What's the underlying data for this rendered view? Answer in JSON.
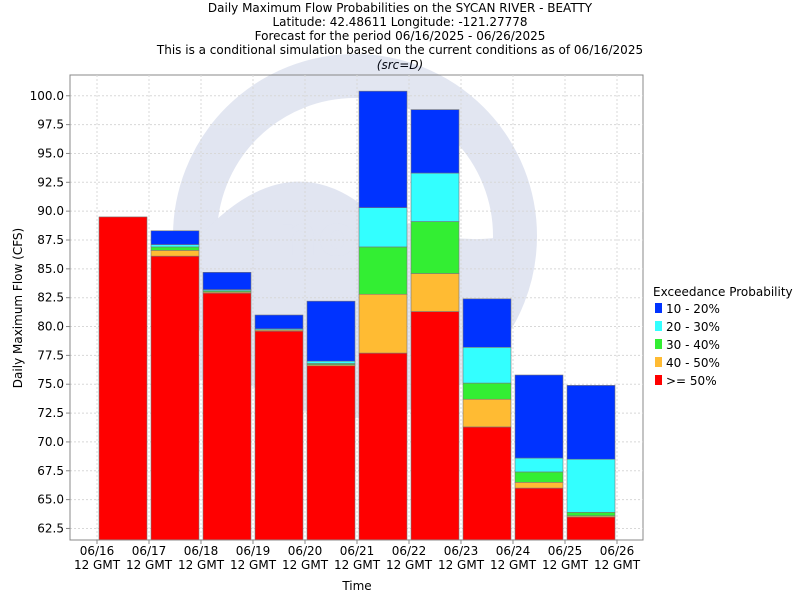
{
  "titles": {
    "line1": "Daily Maximum Flow Probabilities on the SYCAN RIVER - BEATTY",
    "line2": "Latitude: 42.48611 Longitude: -121.27778",
    "line3": "Forecast for the period 06/16/2025 - 06/26/2025",
    "line4": "This is a conditional simulation based on the current conditions as of 06/16/2025",
    "line5": "(src=D)"
  },
  "colors": {
    "10 - 20%": "#0033ff",
    "20 - 30%": "#33ffff",
    "30 - 40%": "#33ee33",
    "40 - 50%": "#ffbb33",
    ">= 50%": "#ff0000"
  },
  "chart_data": {
    "type": "bar",
    "stacked": true,
    "title": "Daily Maximum Flow Probabilities on the SYCAN RIVER - BEATTY",
    "xlabel": "Time",
    "ylabel": "Daily Maximum Flow (CFS)",
    "ylim": [
      61.5,
      101.8
    ],
    "yticks": [
      62.5,
      65.0,
      67.5,
      70.0,
      72.5,
      75.0,
      77.5,
      80.0,
      82.5,
      85.0,
      87.5,
      90.0,
      92.5,
      95.0,
      97.5,
      100.0
    ],
    "xticks": [
      [
        "06/16",
        "12 GMT"
      ],
      [
        "06/17",
        "12 GMT"
      ],
      [
        "06/18",
        "12 GMT"
      ],
      [
        "06/19",
        "12 GMT"
      ],
      [
        "06/20",
        "12 GMT"
      ],
      [
        "06/21",
        "12 GMT"
      ],
      [
        "06/22",
        "12 GMT"
      ],
      [
        "06/23",
        "12 GMT"
      ],
      [
        "06/24",
        "12 GMT"
      ],
      [
        "06/25",
        "12 GMT"
      ],
      [
        "06/26",
        "12 GMT"
      ]
    ],
    "grid": true,
    "legend_title": "Exceedance Probability",
    "legend_position": "right",
    "legend": [
      "10 - 20%",
      "20 - 30%",
      "30 - 40%",
      "40 - 50%",
      ">= 50%"
    ],
    "bars": [
      {
        "start": "06/16 12 GMT",
        "levels": {
          ">= 50%": 89.5,
          "40 - 50%": 89.5,
          "30 - 40%": 89.5,
          "20 - 30%": 89.5,
          "10 - 20%": 89.5
        }
      },
      {
        "start": "06/17 12 GMT",
        "levels": {
          ">= 50%": 86.1,
          "40 - 50%": 86.6,
          "30 - 40%": 86.9,
          "20 - 30%": 87.1,
          "10 - 20%": 88.3
        }
      },
      {
        "start": "06/18 12 GMT",
        "levels": {
          ">= 50%": 82.9,
          "40 - 50%": 83.0,
          "30 - 40%": 83.1,
          "20 - 30%": 83.2,
          "10 - 20%": 84.7
        }
      },
      {
        "start": "06/19 12 GMT",
        "levels": {
          ">= 50%": 79.6,
          "40 - 50%": 79.7,
          "30 - 40%": 79.7,
          "20 - 30%": 79.8,
          "10 - 20%": 81.0
        }
      },
      {
        "start": "06/20 12 GMT",
        "levels": {
          ">= 50%": 76.6,
          "40 - 50%": 76.7,
          "30 - 40%": 76.8,
          "20 - 30%": 77.0,
          "10 - 20%": 82.2
        }
      },
      {
        "start": "06/21 12 GMT",
        "levels": {
          ">= 50%": 77.7,
          "40 - 50%": 82.8,
          "30 - 40%": 86.9,
          "20 - 30%": 90.3,
          "10 - 20%": 100.4
        }
      },
      {
        "start": "06/22 12 GMT",
        "levels": {
          ">= 50%": 81.3,
          "40 - 50%": 84.6,
          "30 - 40%": 89.1,
          "20 - 30%": 93.3,
          "10 - 20%": 98.8
        }
      },
      {
        "start": "06/23 12 GMT",
        "levels": {
          ">= 50%": 71.3,
          "40 - 50%": 73.7,
          "30 - 40%": 75.1,
          "20 - 30%": 78.2,
          "10 - 20%": 82.4
        }
      },
      {
        "start": "06/24 12 GMT",
        "levels": {
          ">= 50%": 66.0,
          "40 - 50%": 66.5,
          "30 - 40%": 67.4,
          "20 - 30%": 68.6,
          "10 - 20%": 75.8
        }
      },
      {
        "start": "06/25 12 GMT",
        "levels": {
          ">= 50%": 63.5,
          "40 - 50%": 63.6,
          "30 - 40%": 63.9,
          "20 - 30%": 68.5,
          "10 - 20%": 74.9
        }
      }
    ]
  }
}
